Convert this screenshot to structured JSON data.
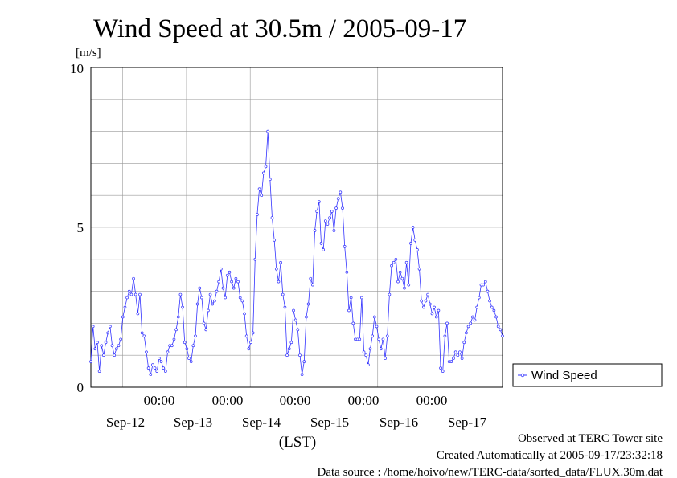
{
  "title": "Wind Speed at 30.5m / 2005-09-17",
  "chart_data": {
    "type": "line",
    "ylabel": "[m/s]",
    "xlabel": "(LST)",
    "ylim": [
      0,
      10
    ],
    "yticks": [
      "0",
      "5",
      "10"
    ],
    "x_time_ticks": [
      "00:00",
      "00:00",
      "00:00",
      "00:00",
      "00:00"
    ],
    "x_date_ticks": [
      "Sep-12",
      "Sep-13",
      "Sep-14",
      "Sep-15",
      "Sep-16",
      "Sep-17"
    ],
    "grid": true,
    "legend_position": "right",
    "series": [
      {
        "name": "Wind Speed",
        "color": "#3333ff",
        "x_start": "2005-09-11 12:00",
        "x_end": "2005-09-17 23:00",
        "values": [
          0.8,
          1.9,
          1.2,
          1.4,
          0.5,
          1.3,
          1.0,
          1.4,
          1.7,
          1.9,
          1.3,
          1.0,
          1.2,
          1.3,
          1.5,
          2.2,
          2.5,
          2.8,
          3.0,
          2.9,
          3.4,
          2.9,
          2.3,
          2.9,
          1.7,
          1.6,
          1.1,
          0.6,
          0.4,
          0.7,
          0.6,
          0.5,
          0.9,
          0.8,
          0.6,
          0.5,
          1.1,
          1.3,
          1.3,
          1.5,
          1.8,
          2.2,
          2.9,
          2.5,
          1.4,
          1.2,
          0.9,
          0.8,
          1.3,
          1.6,
          2.6,
          3.1,
          2.8,
          2.0,
          1.8,
          2.4,
          2.9,
          2.6,
          2.7,
          3.0,
          3.3,
          3.7,
          3.1,
          2.8,
          3.5,
          3.6,
          3.3,
          3.1,
          3.4,
          3.3,
          2.8,
          2.7,
          2.3,
          1.6,
          1.2,
          1.4,
          1.7,
          4.0,
          5.4,
          6.2,
          6.0,
          6.7,
          6.9,
          8.0,
          6.5,
          5.3,
          4.6,
          3.7,
          3.3,
          3.9,
          2.9,
          2.5,
          1.0,
          1.2,
          1.4,
          2.4,
          2.1,
          1.8,
          1.0,
          0.4,
          0.8,
          2.2,
          2.6,
          3.4,
          3.2,
          4.9,
          5.5,
          5.8,
          4.5,
          4.3,
          5.2,
          5.1,
          5.3,
          5.5,
          4.9,
          5.6,
          5.9,
          6.1,
          5.6,
          4.4,
          3.6,
          2.4,
          2.8,
          2.0,
          1.5,
          1.5,
          1.5,
          2.8,
          1.1,
          1.0,
          0.7,
          1.2,
          1.6,
          2.2,
          1.9,
          1.5,
          1.2,
          1.5,
          0.9,
          1.6,
          2.9,
          3.8,
          3.9,
          4.0,
          3.3,
          3.6,
          3.4,
          3.1,
          3.9,
          3.2,
          4.5,
          5.0,
          4.6,
          4.3,
          3.7,
          2.7,
          2.5,
          2.7,
          2.9,
          2.6,
          2.3,
          2.5,
          2.2,
          2.4,
          0.6,
          0.5,
          1.6,
          2.0,
          0.8,
          0.8,
          0.9,
          1.1,
          1.0,
          1.1,
          0.9,
          1.4,
          1.7,
          1.9,
          2.0,
          2.2,
          2.1,
          2.5,
          2.8,
          3.2,
          3.2,
          3.3,
          3.0,
          2.7,
          2.5,
          2.4,
          2.2,
          1.9,
          1.8,
          1.6
        ]
      }
    ]
  },
  "footer": {
    "line1": "Observed at TERC Tower site",
    "line2": "Created Automatically at 2005-09-17/23:32:18",
    "line3": "Data source : /home/hoivo/new/TERC-data/sorted_data/FLUX.30m.dat"
  }
}
